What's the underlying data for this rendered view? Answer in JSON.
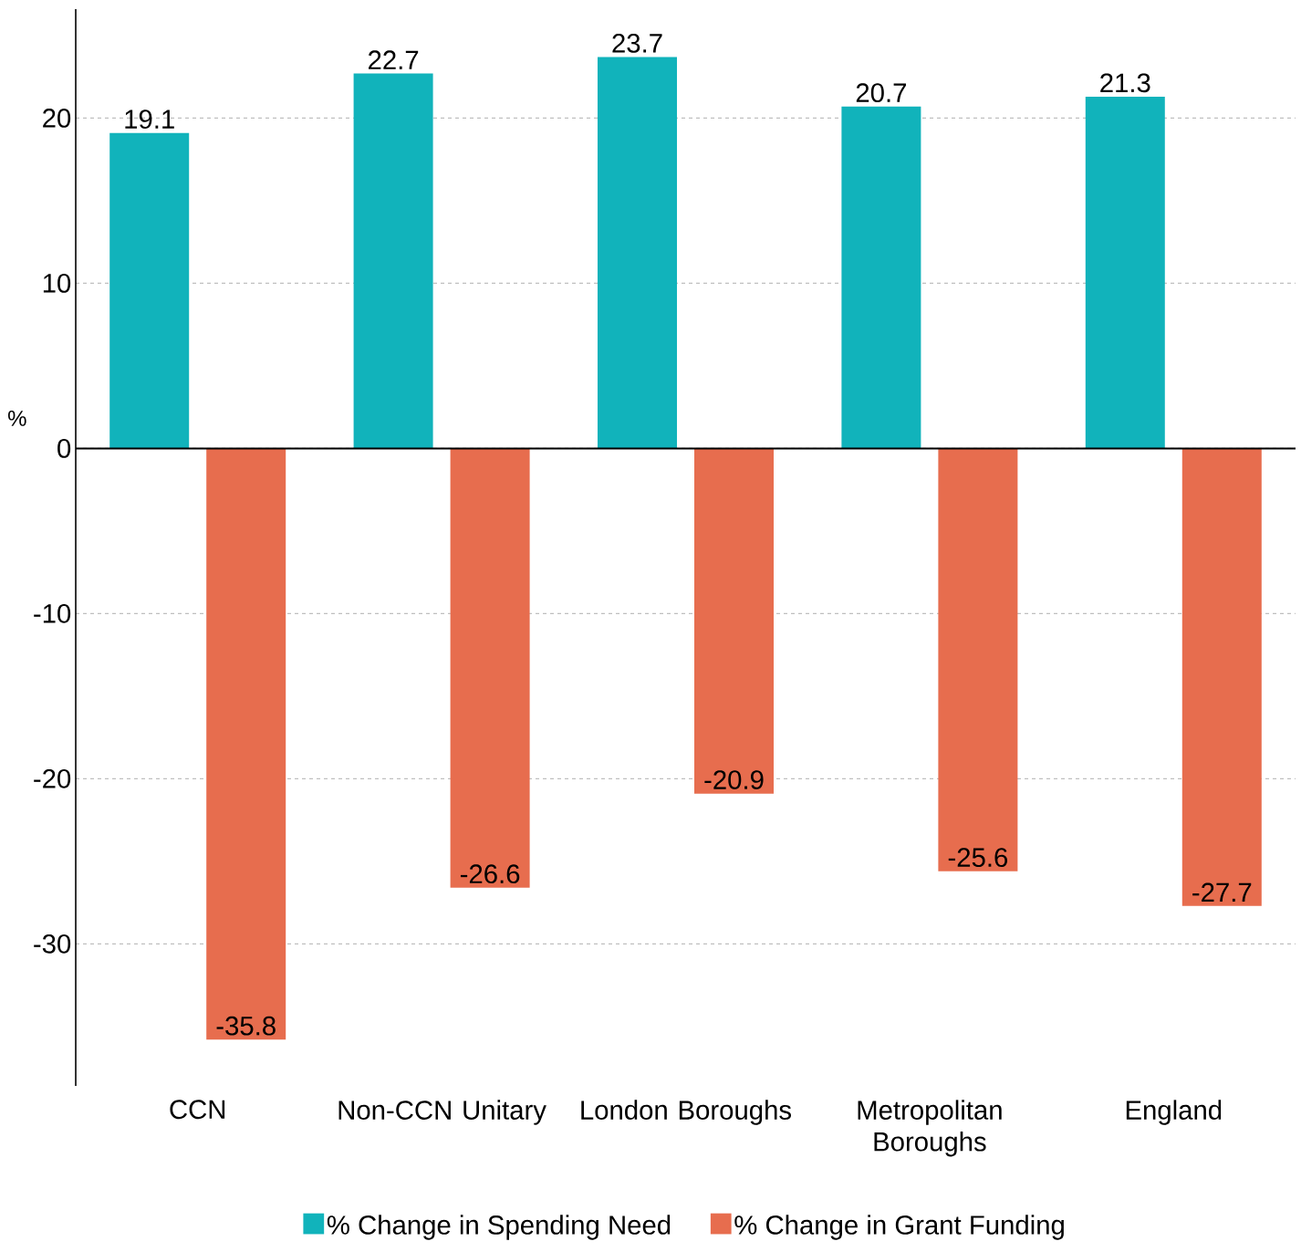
{
  "chart_data": {
    "type": "bar",
    "ylabel": "%",
    "categories": [
      "CCN",
      "Non-CCN Unitary",
      "London Boroughs",
      "Metropolitan Boroughs",
      "England"
    ],
    "series": [
      {
        "name": "% Change in Spending Need",
        "color": "#11b3bb",
        "values": [
          19.1,
          22.7,
          23.7,
          20.7,
          21.3
        ]
      },
      {
        "name": "% Change in Grant Funding",
        "color": "#e76d4e",
        "values": [
          -35.8,
          -26.6,
          -20.9,
          -25.6,
          -27.7
        ]
      }
    ],
    "ylim": [
      -38.6,
      26.6
    ],
    "yticks": [
      -30,
      -20,
      -10,
      0,
      10,
      20
    ],
    "grid": "y",
    "legend": "bottom",
    "data_labels": true
  }
}
